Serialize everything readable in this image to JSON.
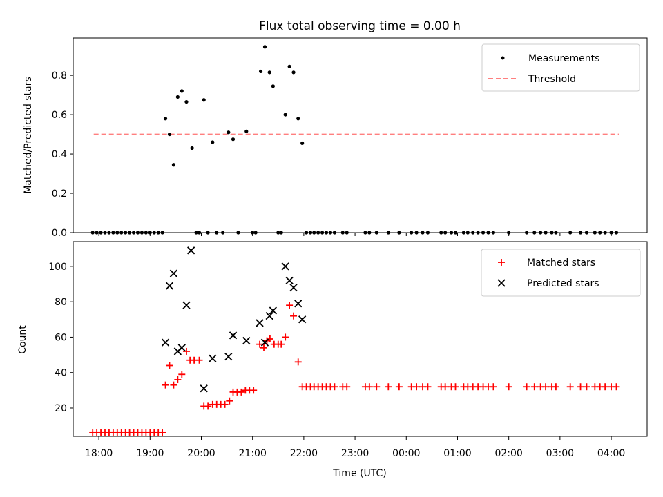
{
  "chart_data": [
    {
      "type": "scatter",
      "title": "Flux total observing time = 0.00 h",
      "ylabel": "Matched/Predicted stars",
      "xlabel": "",
      "xlim": [
        17.5,
        4.7
      ],
      "ylim": [
        0.0,
        0.99
      ],
      "yticks": [
        0.0,
        0.2,
        0.4,
        0.6,
        0.8
      ],
      "ytick_labels": [
        "0.0",
        "0.2",
        "0.4",
        "0.6",
        "0.8"
      ],
      "threshold": {
        "y": 0.5,
        "x_start": 17.9,
        "x_end": 4.15
      },
      "legend": {
        "position": "top-right",
        "measurements": "Measurements",
        "threshold": "Threshold"
      },
      "series": [
        {
          "name": "Measurements",
          "marker": "dot",
          "color": "#000000",
          "points": [
            [
              17.88,
              0
            ],
            [
              17.96,
              0
            ],
            [
              18.04,
              0
            ],
            [
              18.12,
              0
            ],
            [
              18.2,
              0
            ],
            [
              18.28,
              0
            ],
            [
              18.36,
              0
            ],
            [
              18.44,
              0
            ],
            [
              18.52,
              0
            ],
            [
              18.6,
              0
            ],
            [
              18.68,
              0
            ],
            [
              18.76,
              0
            ],
            [
              18.84,
              0
            ],
            [
              18.92,
              0
            ],
            [
              19.0,
              0
            ],
            [
              19.08,
              0
            ],
            [
              19.16,
              0
            ],
            [
              19.24,
              0
            ],
            [
              19.3,
              0.58
            ],
            [
              19.38,
              0.5
            ],
            [
              19.46,
              0.345
            ],
            [
              19.54,
              0.69
            ],
            [
              19.62,
              0.72
            ],
            [
              19.71,
              0.665
            ],
            [
              19.82,
              0.43
            ],
            [
              19.9,
              0
            ],
            [
              19.96,
              0
            ],
            [
              20.05,
              0.675
            ],
            [
              20.13,
              0
            ],
            [
              20.22,
              0.46
            ],
            [
              20.3,
              0
            ],
            [
              20.42,
              0
            ],
            [
              20.53,
              0.51
            ],
            [
              20.62,
              0.475
            ],
            [
              20.72,
              0
            ],
            [
              20.88,
              0.515
            ],
            [
              21.0,
              0
            ],
            [
              21.06,
              0
            ],
            [
              21.16,
              0.82
            ],
            [
              21.24,
              0.945
            ],
            [
              21.33,
              0.815
            ],
            [
              21.4,
              0.745
            ],
            [
              21.5,
              0
            ],
            [
              21.56,
              0
            ],
            [
              21.64,
              0.6
            ],
            [
              21.72,
              0.845
            ],
            [
              21.8,
              0.815
            ],
            [
              21.89,
              0.58
            ],
            [
              21.97,
              0.455
            ],
            [
              22.05,
              0
            ],
            [
              22.13,
              0
            ],
            [
              22.2,
              0
            ],
            [
              22.28,
              0
            ],
            [
              22.36,
              0
            ],
            [
              22.44,
              0
            ],
            [
              22.52,
              0
            ],
            [
              22.6,
              0
            ],
            [
              22.76,
              0
            ],
            [
              22.84,
              0
            ],
            [
              23.2,
              0
            ],
            [
              23.28,
              0
            ],
            [
              23.42,
              0
            ],
            [
              23.65,
              0
            ],
            [
              23.86,
              0
            ],
            [
              24.1,
              0
            ],
            [
              24.2,
              0
            ],
            [
              24.32,
              0
            ],
            [
              24.42,
              0
            ],
            [
              24.68,
              0
            ],
            [
              24.76,
              0
            ],
            [
              24.88,
              0
            ],
            [
              24.96,
              0
            ],
            [
              25.12,
              0
            ],
            [
              25.2,
              0
            ],
            [
              25.3,
              0
            ],
            [
              25.4,
              0
            ],
            [
              25.5,
              0
            ],
            [
              25.6,
              0
            ],
            [
              25.7,
              0
            ],
            [
              26.0,
              0
            ],
            [
              26.35,
              0
            ],
            [
              26.5,
              0
            ],
            [
              26.62,
              0
            ],
            [
              26.72,
              0
            ],
            [
              26.84,
              0
            ],
            [
              26.92,
              0
            ],
            [
              27.2,
              0
            ],
            [
              27.4,
              0
            ],
            [
              27.52,
              0
            ],
            [
              27.68,
              0
            ],
            [
              27.78,
              0
            ],
            [
              27.88,
              0
            ],
            [
              28.0,
              0
            ],
            [
              28.1,
              0
            ]
          ]
        }
      ]
    },
    {
      "type": "scatter",
      "title": "",
      "xlabel": "Time (UTC)",
      "ylabel": "Count",
      "xlim": [
        17.5,
        4.7
      ],
      "ylim": [
        4,
        114
      ],
      "yticks": [
        20,
        40,
        60,
        80,
        100
      ],
      "ytick_labels": [
        "20",
        "40",
        "60",
        "80",
        "100"
      ],
      "x_ticks": [
        18,
        19,
        20,
        21,
        22,
        23,
        0,
        1,
        2,
        3,
        4
      ],
      "x_tick_labels": [
        "18:00",
        "19:00",
        "20:00",
        "21:00",
        "22:00",
        "23:00",
        "00:00",
        "01:00",
        "02:00",
        "03:00",
        "04:00"
      ],
      "legend": {
        "position": "top-right",
        "matched": "Matched stars",
        "predicted": "Predicted stars"
      },
      "series": [
        {
          "name": "Matched stars",
          "marker": "plus",
          "color": "#ff0000",
          "points": [
            [
              17.88,
              6
            ],
            [
              17.96,
              6
            ],
            [
              18.04,
              6
            ],
            [
              18.12,
              6
            ],
            [
              18.2,
              6
            ],
            [
              18.28,
              6
            ],
            [
              18.36,
              6
            ],
            [
              18.44,
              6
            ],
            [
              18.52,
              6
            ],
            [
              18.6,
              6
            ],
            [
              18.68,
              6
            ],
            [
              18.76,
              6
            ],
            [
              18.84,
              6
            ],
            [
              18.92,
              6
            ],
            [
              19.0,
              6
            ],
            [
              19.08,
              6
            ],
            [
              19.16,
              6
            ],
            [
              19.24,
              6
            ],
            [
              19.3,
              33
            ],
            [
              19.38,
              44
            ],
            [
              19.46,
              33
            ],
            [
              19.54,
              36
            ],
            [
              19.62,
              39
            ],
            [
              19.71,
              52
            ],
            [
              19.78,
              47
            ],
            [
              19.86,
              47
            ],
            [
              19.96,
              47
            ],
            [
              20.05,
              21
            ],
            [
              20.13,
              21
            ],
            [
              20.22,
              22
            ],
            [
              20.3,
              22
            ],
            [
              20.38,
              22
            ],
            [
              20.46,
              22
            ],
            [
              20.55,
              24
            ],
            [
              20.62,
              29
            ],
            [
              20.7,
              29
            ],
            [
              20.78,
              29
            ],
            [
              20.86,
              30
            ],
            [
              20.94,
              30
            ],
            [
              21.02,
              30
            ],
            [
              21.14,
              56
            ],
            [
              21.22,
              54
            ],
            [
              21.28,
              58
            ],
            [
              21.34,
              59
            ],
            [
              21.42,
              56
            ],
            [
              21.5,
              56
            ],
            [
              21.56,
              56
            ],
            [
              21.64,
              60
            ],
            [
              21.72,
              78
            ],
            [
              21.8,
              72
            ],
            [
              21.89,
              46
            ],
            [
              21.97,
              32
            ],
            [
              22.05,
              32
            ],
            [
              22.13,
              32
            ],
            [
              22.2,
              32
            ],
            [
              22.28,
              32
            ],
            [
              22.36,
              32
            ],
            [
              22.44,
              32
            ],
            [
              22.52,
              32
            ],
            [
              22.6,
              32
            ],
            [
              22.76,
              32
            ],
            [
              22.84,
              32
            ],
            [
              23.2,
              32
            ],
            [
              23.28,
              32
            ],
            [
              23.42,
              32
            ],
            [
              23.65,
              32
            ],
            [
              23.86,
              32
            ],
            [
              24.1,
              32
            ],
            [
              24.2,
              32
            ],
            [
              24.32,
              32
            ],
            [
              24.42,
              32
            ],
            [
              24.68,
              32
            ],
            [
              24.76,
              32
            ],
            [
              24.88,
              32
            ],
            [
              24.96,
              32
            ],
            [
              25.12,
              32
            ],
            [
              25.2,
              32
            ],
            [
              25.3,
              32
            ],
            [
              25.4,
              32
            ],
            [
              25.5,
              32
            ],
            [
              25.6,
              32
            ],
            [
              25.7,
              32
            ],
            [
              26.0,
              32
            ],
            [
              26.35,
              32
            ],
            [
              26.5,
              32
            ],
            [
              26.62,
              32
            ],
            [
              26.72,
              32
            ],
            [
              26.84,
              32
            ],
            [
              26.92,
              32
            ],
            [
              27.2,
              32
            ],
            [
              27.4,
              32
            ],
            [
              27.52,
              32
            ],
            [
              27.68,
              32
            ],
            [
              27.78,
              32
            ],
            [
              27.88,
              32
            ],
            [
              28.0,
              32
            ],
            [
              28.1,
              32
            ]
          ]
        },
        {
          "name": "Predicted stars",
          "marker": "x",
          "color": "#000000",
          "points": [
            [
              19.3,
              57
            ],
            [
              19.38,
              89
            ],
            [
              19.46,
              96
            ],
            [
              19.54,
              52
            ],
            [
              19.62,
              54
            ],
            [
              19.71,
              78
            ],
            [
              19.8,
              109
            ],
            [
              20.05,
              31
            ],
            [
              20.22,
              48
            ],
            [
              20.53,
              49
            ],
            [
              20.62,
              61
            ],
            [
              20.88,
              58
            ],
            [
              21.14,
              68
            ],
            [
              21.24,
              57
            ],
            [
              21.33,
              72
            ],
            [
              21.4,
              75
            ],
            [
              21.64,
              100
            ],
            [
              21.72,
              92
            ],
            [
              21.8,
              88
            ],
            [
              21.89,
              79
            ],
            [
              21.97,
              70
            ]
          ]
        }
      ]
    }
  ]
}
